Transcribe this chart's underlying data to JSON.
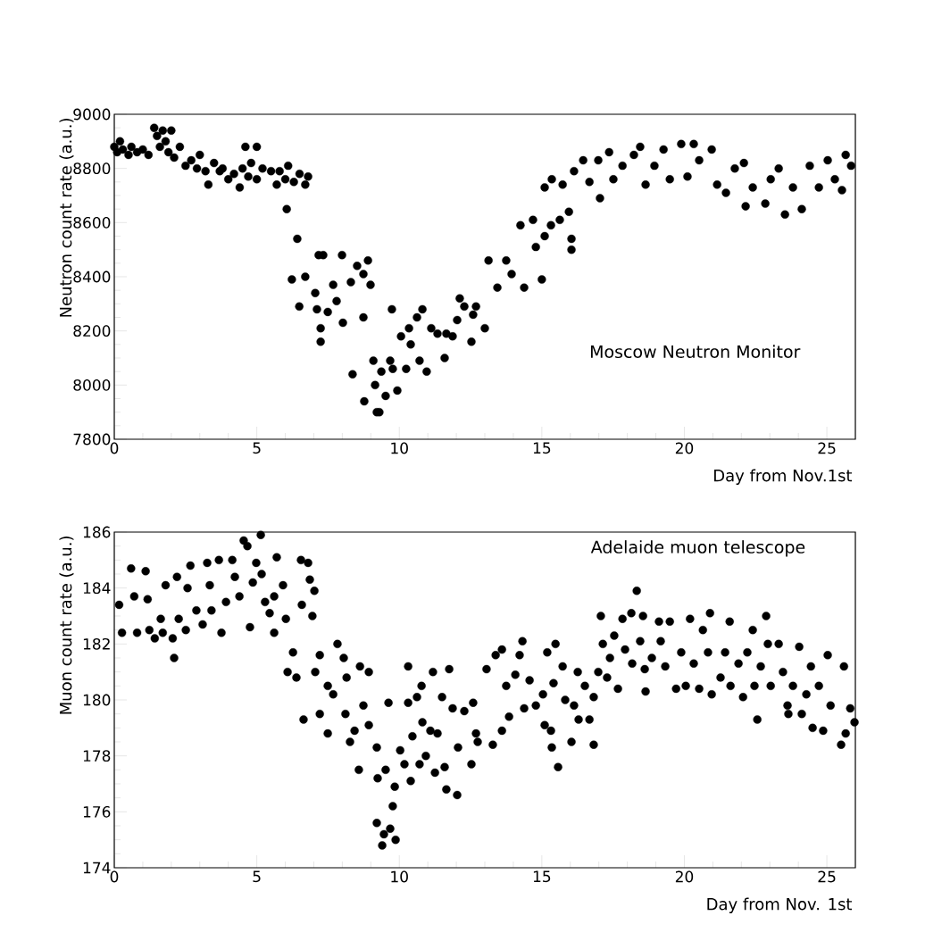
{
  "chart_data": [
    {
      "type": "scatter",
      "xlabel": "Day from Nov.1st",
      "ylabel": "Neutron count rate (a.u.)",
      "annotations": [
        "Moscow Neutron Monitor"
      ],
      "marker": "circle",
      "xlim": [
        0,
        26
      ],
      "ylim": [
        7800,
        9000
      ],
      "xticks": [
        0,
        5,
        10,
        15,
        20,
        25
      ],
      "yticks": [
        7800,
        8000,
        8200,
        8400,
        8600,
        8800,
        9000
      ],
      "series": [
        {
          "color": "#000000",
          "x": [
            0.0,
            0.1,
            0.2,
            0.3,
            0.5,
            0.6,
            0.8,
            1.0,
            1.2,
            1.4,
            1.5,
            1.6,
            1.7,
            1.8,
            1.9,
            2.0,
            2.1,
            2.3,
            2.5,
            2.7,
            2.9,
            3.0,
            3.2,
            3.3,
            3.5,
            3.7,
            3.8,
            4.0,
            4.2,
            4.4,
            4.5,
            4.6,
            4.7,
            4.8,
            5.0,
            5.0,
            5.2,
            5.5,
            5.7,
            5.8,
            6.0,
            6.05,
            6.1,
            6.23,
            6.3,
            6.42,
            6.49,
            6.5,
            6.7,
            6.7,
            6.8,
            7.05,
            7.11,
            7.17,
            7.24,
            7.24,
            7.33,
            7.49,
            7.68,
            7.8,
            7.99,
            8.02,
            8.3,
            8.36,
            8.52,
            8.74,
            8.74,
            8.77,
            8.9,
            8.99,
            9.09,
            9.15,
            9.21,
            9.3,
            9.37,
            9.52,
            9.68,
            9.74,
            9.77,
            9.93,
            10.06,
            10.24,
            10.34,
            10.4,
            10.62,
            10.71,
            10.81,
            10.96,
            11.12,
            11.34,
            11.59,
            11.65,
            11.87,
            12.03,
            12.12,
            12.28,
            12.53,
            12.59,
            12.69,
            13.0,
            13.13,
            13.44,
            13.75,
            13.94,
            14.25,
            14.38,
            14.69,
            14.79,
            15.0,
            15.1,
            15.1,
            15.32,
            15.35,
            15.63,
            15.73,
            15.95,
            16.04,
            16.04,
            16.13,
            16.45,
            16.67,
            16.98,
            17.04,
            17.36,
            17.51,
            17.83,
            18.23,
            18.45,
            18.64,
            18.95,
            19.27,
            19.49,
            19.89,
            20.11,
            20.33,
            20.52,
            20.96,
            21.15,
            21.46,
            21.77,
            22.09,
            22.15,
            22.4,
            22.84,
            23.03,
            23.31,
            23.53,
            23.81,
            24.12,
            24.4,
            24.72,
            25.03,
            25.28,
            25.53,
            25.66,
            25.85
          ],
          "values": [
            8880,
            8860,
            8900,
            8870,
            8850,
            8880,
            8860,
            8870,
            8850,
            8950,
            8920,
            8880,
            8940,
            8900,
            8860,
            8940,
            8840,
            8880,
            8810,
            8830,
            8800,
            8850,
            8790,
            8740,
            8820,
            8790,
            8800,
            8760,
            8780,
            8730,
            8800,
            8880,
            8770,
            8820,
            8880,
            8760,
            8800,
            8790,
            8740,
            8790,
            8760,
            8650,
            8810,
            8390,
            8750,
            8540,
            8290,
            8780,
            8400,
            8740,
            8770,
            8340,
            8280,
            8480,
            8210,
            8160,
            8480,
            8270,
            8370,
            8310,
            8480,
            8230,
            8380,
            8040,
            8440,
            8410,
            8250,
            7940,
            8460,
            8370,
            8090,
            8000,
            7900,
            7900,
            8050,
            7960,
            8090,
            8280,
            8060,
            7980,
            8180,
            8060,
            8210,
            8150,
            8250,
            8090,
            8280,
            8050,
            8210,
            8190,
            8100,
            8190,
            8180,
            8240,
            8320,
            8290,
            8160,
            8260,
            8290,
            8210,
            8460,
            8360,
            8460,
            8410,
            8590,
            8360,
            8610,
            8510,
            8390,
            8550,
            8730,
            8590,
            8760,
            8610,
            8740,
            8640,
            8540,
            8500,
            8790,
            8830,
            8750,
            8830,
            8690,
            8860,
            8760,
            8810,
            8850,
            8880,
            8740,
            8810,
            8870,
            8760,
            8890,
            8770,
            8890,
            8830,
            8870,
            8740,
            8710,
            8800,
            8820,
            8660,
            8730,
            8670,
            8760,
            8800,
            8630,
            8730,
            8650,
            8810,
            8730,
            8830,
            8760,
            8720,
            8850,
            8810
          ]
        }
      ]
    },
    {
      "type": "scatter",
      "xlabel": "Day from Nov. 1st",
      "ylabel": "Muon count rate (a.u.)",
      "annotations": [
        "Adelaide muon telescope"
      ],
      "marker": "circle",
      "xlim": [
        0,
        26
      ],
      "ylim": [
        174,
        186
      ],
      "xticks": [
        0,
        5,
        10,
        15,
        20,
        25
      ],
      "yticks": [
        174,
        176,
        178,
        180,
        182,
        184,
        186
      ],
      "series": [
        {
          "color": "#000000",
          "x": [
            0.17,
            0.27,
            0.59,
            0.7,
            0.8,
            1.1,
            1.17,
            1.23,
            1.42,
            1.63,
            1.7,
            1.8,
            2.05,
            2.1,
            2.2,
            2.26,
            2.51,
            2.57,
            2.67,
            2.88,
            3.1,
            3.26,
            3.35,
            3.41,
            3.67,
            3.76,
            3.92,
            4.14,
            4.23,
            4.39,
            4.54,
            4.67,
            4.76,
            4.86,
            4.98,
            5.14,
            5.17,
            5.29,
            5.45,
            5.61,
            5.61,
            5.7,
            5.92,
            6.02,
            6.08,
            6.27,
            6.39,
            6.55,
            6.58,
            6.64,
            6.8,
            6.86,
            6.95,
            7.02,
            7.05,
            7.21,
            7.21,
            7.49,
            7.49,
            7.68,
            7.83,
            8.05,
            8.11,
            8.15,
            8.27,
            8.43,
            8.58,
            8.62,
            8.74,
            8.93,
            8.93,
            9.21,
            9.21,
            9.24,
            9.4,
            9.46,
            9.52,
            9.62,
            9.68,
            9.77,
            9.84,
            9.87,
            10.03,
            10.18,
            10.31,
            10.31,
            10.4,
            10.46,
            10.62,
            10.71,
            10.78,
            10.81,
            10.93,
            11.09,
            11.18,
            11.25,
            11.34,
            11.5,
            11.59,
            11.65,
            11.75,
            11.87,
            12.03,
            12.06,
            12.28,
            12.53,
            12.59,
            12.69,
            12.75,
            13.06,
            13.28,
            13.38,
            13.6,
            13.6,
            13.75,
            13.85,
            14.07,
            14.22,
            14.32,
            14.38,
            14.57,
            14.79,
            15.04,
            15.1,
            15.19,
            15.32,
            15.35,
            15.41,
            15.48,
            15.57,
            15.73,
            15.82,
            16.04,
            16.13,
            16.26,
            16.29,
            16.51,
            16.67,
            16.82,
            16.82,
            16.98,
            17.07,
            17.14,
            17.29,
            17.39,
            17.54,
            17.67,
            17.83,
            17.92,
            18.14,
            18.17,
            18.33,
            18.45,
            18.55,
            18.61,
            18.64,
            18.86,
            19.11,
            19.17,
            19.33,
            19.49,
            19.71,
            19.89,
            20.05,
            20.2,
            20.33,
            20.52,
            20.65,
            20.83,
            20.9,
            20.96,
            21.27,
            21.43,
            21.59,
            21.62,
            21.9,
            22.06,
            22.21,
            22.4,
            22.46,
            22.56,
            22.68,
            22.87,
            22.93,
            23.03,
            23.31,
            23.46,
            23.62,
            23.65,
            23.81,
            24.03,
            24.12,
            24.28,
            24.44,
            24.5,
            24.72,
            24.87,
            25.03,
            25.13,
            25.5,
            25.6,
            25.66,
            25.82,
            25.97
          ],
          "values": [
            183.4,
            182.4,
            184.7,
            183.7,
            182.4,
            184.6,
            183.6,
            182.5,
            182.2,
            182.9,
            182.4,
            184.1,
            182.2,
            181.5,
            184.4,
            182.9,
            182.5,
            184.0,
            184.8,
            183.2,
            182.7,
            184.9,
            184.1,
            183.2,
            185.0,
            182.4,
            183.5,
            185.0,
            184.4,
            183.7,
            185.7,
            185.5,
            182.6,
            184.2,
            184.9,
            185.9,
            184.5,
            183.5,
            183.1,
            182.4,
            183.7,
            185.1,
            184.1,
            182.9,
            181.0,
            181.7,
            180.8,
            185.0,
            183.4,
            179.3,
            184.9,
            184.3,
            183.0,
            183.9,
            181.0,
            181.6,
            179.5,
            178.8,
            180.5,
            180.2,
            182.0,
            181.5,
            179.5,
            180.8,
            178.5,
            178.9,
            177.5,
            181.2,
            179.8,
            181.0,
            179.1,
            178.3,
            175.6,
            177.2,
            174.8,
            175.2,
            177.5,
            179.9,
            175.4,
            176.2,
            176.9,
            175.0,
            178.2,
            177.7,
            181.2,
            179.9,
            177.1,
            178.7,
            180.1,
            177.7,
            180.5,
            179.2,
            178.0,
            178.9,
            181.0,
            177.4,
            178.8,
            180.1,
            177.6,
            176.8,
            181.1,
            179.7,
            176.6,
            178.3,
            179.6,
            177.7,
            179.9,
            178.8,
            178.5,
            181.1,
            178.4,
            181.6,
            181.8,
            178.9,
            180.5,
            179.4,
            180.9,
            181.6,
            182.1,
            179.7,
            180.7,
            179.8,
            180.2,
            179.1,
            181.7,
            178.9,
            178.3,
            180.6,
            182.0,
            177.6,
            181.2,
            180.0,
            178.5,
            179.8,
            181.0,
            179.3,
            180.5,
            179.3,
            178.4,
            180.1,
            181.0,
            183.0,
            182.0,
            180.8,
            181.5,
            182.3,
            180.4,
            182.9,
            181.8,
            183.1,
            181.3,
            183.9,
            182.1,
            183.0,
            181.1,
            180.3,
            181.5,
            182.8,
            182.1,
            181.2,
            182.8,
            180.4,
            181.7,
            180.5,
            182.9,
            181.3,
            180.4,
            182.5,
            181.7,
            183.1,
            180.2,
            180.8,
            181.7,
            182.8,
            180.5,
            181.3,
            180.1,
            181.7,
            182.5,
            180.5,
            179.3,
            181.2,
            183.0,
            182.0,
            180.5,
            182.0,
            181.0,
            179.8,
            179.5,
            180.5,
            181.9,
            179.5,
            180.2,
            181.2,
            179.0,
            180.5,
            178.9,
            181.6,
            179.8,
            178.4,
            181.2,
            178.8,
            179.7,
            179.2
          ]
        }
      ]
    }
  ]
}
